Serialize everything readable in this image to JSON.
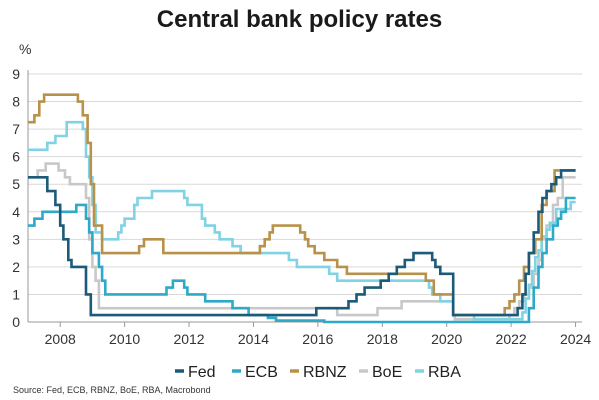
{
  "chart_data": {
    "type": "line",
    "title": "Central bank policy rates",
    "ylabel": "%",
    "xlabel": "",
    "source": "Source: Fed, ECB, RBNZ, BoE, RBA, Macrobond",
    "xlim": [
      2007.0,
      2024.2
    ],
    "ylim": [
      0,
      9
    ],
    "yticks": [
      0,
      1,
      2,
      3,
      4,
      5,
      6,
      7,
      8,
      9
    ],
    "xticks": [
      2008,
      2010,
      2012,
      2014,
      2016,
      2018,
      2020,
      2022,
      2024
    ],
    "grid": "horizontal",
    "legend_position": "bottom",
    "colors": {
      "Fed": "#1b5a78",
      "ECB": "#2ea9c9",
      "RBNZ": "#b8924a",
      "BoE": "#c8c8c8",
      "RBA": "#7fd3e3",
      "grid": "#d9d9d9",
      "axis": "#999999"
    },
    "series": [
      {
        "name": "Fed",
        "step": true,
        "x": [
          2007.0,
          2007.6,
          2007.85,
          2008.0,
          2008.1,
          2008.25,
          2008.35,
          2008.8,
          2008.95,
          2015.95,
          2016.95,
          2017.2,
          2017.45,
          2017.95,
          2018.2,
          2018.45,
          2018.7,
          2018.97,
          2019.55,
          2019.65,
          2019.8,
          2020.2,
          2022.2,
          2022.35,
          2022.45,
          2022.55,
          2022.7,
          2022.85,
          2022.97,
          2023.1,
          2023.25,
          2023.4,
          2023.55,
          2024.0
        ],
        "y": [
          5.25,
          4.75,
          4.25,
          3.5,
          3.0,
          2.25,
          2.0,
          1.0,
          0.25,
          0.5,
          0.75,
          1.0,
          1.25,
          1.5,
          1.75,
          2.0,
          2.25,
          2.5,
          2.25,
          2.0,
          1.75,
          0.25,
          0.5,
          1.0,
          1.75,
          2.5,
          3.25,
          4.0,
          4.5,
          4.75,
          5.0,
          5.25,
          5.5,
          5.5
        ]
      },
      {
        "name": "ECB",
        "step": true,
        "x": [
          2007.0,
          2007.2,
          2007.45,
          2008.5,
          2008.8,
          2008.9,
          2009.0,
          2009.2,
          2009.3,
          2009.4,
          2011.3,
          2011.5,
          2011.85,
          2011.95,
          2012.5,
          2013.35,
          2013.85,
          2014.45,
          2014.7,
          2016.2,
          2022.55,
          2022.7,
          2022.85,
          2022.97,
          2023.1,
          2023.3,
          2023.45,
          2023.55,
          2023.7,
          2024.0
        ],
        "y": [
          3.5,
          3.75,
          4.0,
          4.25,
          3.75,
          3.25,
          2.5,
          2.0,
          1.5,
          1.0,
          1.25,
          1.5,
          1.25,
          1.0,
          0.75,
          0.5,
          0.25,
          0.15,
          0.05,
          0.0,
          0.5,
          1.25,
          2.0,
          2.5,
          3.0,
          3.5,
          3.75,
          4.0,
          4.5,
          4.5
        ]
      },
      {
        "name": "RBNZ",
        "step": true,
        "x": [
          2007.0,
          2007.2,
          2007.35,
          2007.5,
          2008.55,
          2008.7,
          2008.85,
          2008.95,
          2009.05,
          2009.3,
          2010.45,
          2010.6,
          2011.2,
          2014.2,
          2014.35,
          2014.5,
          2014.6,
          2015.45,
          2015.6,
          2015.7,
          2015.9,
          2016.2,
          2016.6,
          2016.9,
          2019.35,
          2019.6,
          2020.2,
          2021.8,
          2021.95,
          2022.1,
          2022.25,
          2022.4,
          2022.55,
          2022.75,
          2022.95,
          2023.1,
          2023.35,
          2024.0
        ],
        "y": [
          7.25,
          7.5,
          8.0,
          8.25,
          8.0,
          7.5,
          6.5,
          5.0,
          3.5,
          2.5,
          2.75,
          3.0,
          2.5,
          2.75,
          3.0,
          3.25,
          3.5,
          3.25,
          3.0,
          2.75,
          2.5,
          2.25,
          2.0,
          1.75,
          1.5,
          1.0,
          0.25,
          0.5,
          0.75,
          1.0,
          1.5,
          2.0,
          2.5,
          3.0,
          4.25,
          4.75,
          5.5,
          5.5
        ]
      },
      {
        "name": "BoE",
        "step": true,
        "x": [
          2007.0,
          2007.3,
          2007.55,
          2007.95,
          2008.15,
          2008.3,
          2008.8,
          2008.9,
          2009.0,
          2009.1,
          2009.2,
          2016.6,
          2017.85,
          2018.6,
          2020.2,
          2020.25,
          2021.95,
          2022.1,
          2022.25,
          2022.4,
          2022.55,
          2022.7,
          2022.85,
          2022.95,
          2023.1,
          2023.3,
          2023.45,
          2023.6,
          2024.0
        ],
        "y": [
          5.25,
          5.5,
          5.75,
          5.5,
          5.25,
          5.0,
          4.5,
          3.0,
          2.0,
          1.5,
          0.5,
          0.25,
          0.5,
          0.75,
          0.25,
          0.1,
          0.25,
          0.5,
          0.75,
          1.0,
          1.25,
          1.75,
          2.25,
          3.0,
          3.5,
          4.25,
          4.5,
          5.25,
          5.25
        ]
      },
      {
        "name": "RBA",
        "step": true,
        "x": [
          2007.0,
          2007.6,
          2007.85,
          2008.2,
          2008.7,
          2008.8,
          2008.9,
          2009.0,
          2009.1,
          2009.3,
          2009.8,
          2009.9,
          2010.0,
          2010.3,
          2010.4,
          2010.85,
          2011.85,
          2011.95,
          2012.4,
          2012.5,
          2012.8,
          2012.95,
          2013.35,
          2013.6,
          2015.1,
          2015.35,
          2016.35,
          2016.6,
          2019.45,
          2019.55,
          2019.8,
          2020.2,
          2020.85,
          2022.35,
          2022.45,
          2022.55,
          2022.65,
          2022.75,
          2022.85,
          2022.95,
          2023.1,
          2023.2,
          2023.4,
          2023.85,
          2024.0
        ],
        "y": [
          6.25,
          6.5,
          6.75,
          7.25,
          7.0,
          6.0,
          5.25,
          4.25,
          3.25,
          3.0,
          3.25,
          3.5,
          3.75,
          4.25,
          4.5,
          4.75,
          4.5,
          4.25,
          3.75,
          3.5,
          3.25,
          3.0,
          2.75,
          2.5,
          2.25,
          2.0,
          1.75,
          1.5,
          1.25,
          1.0,
          0.75,
          0.25,
          0.1,
          0.35,
          0.85,
          1.35,
          1.85,
          2.35,
          2.6,
          3.1,
          3.35,
          3.6,
          4.1,
          4.35,
          4.35
        ]
      }
    ]
  }
}
